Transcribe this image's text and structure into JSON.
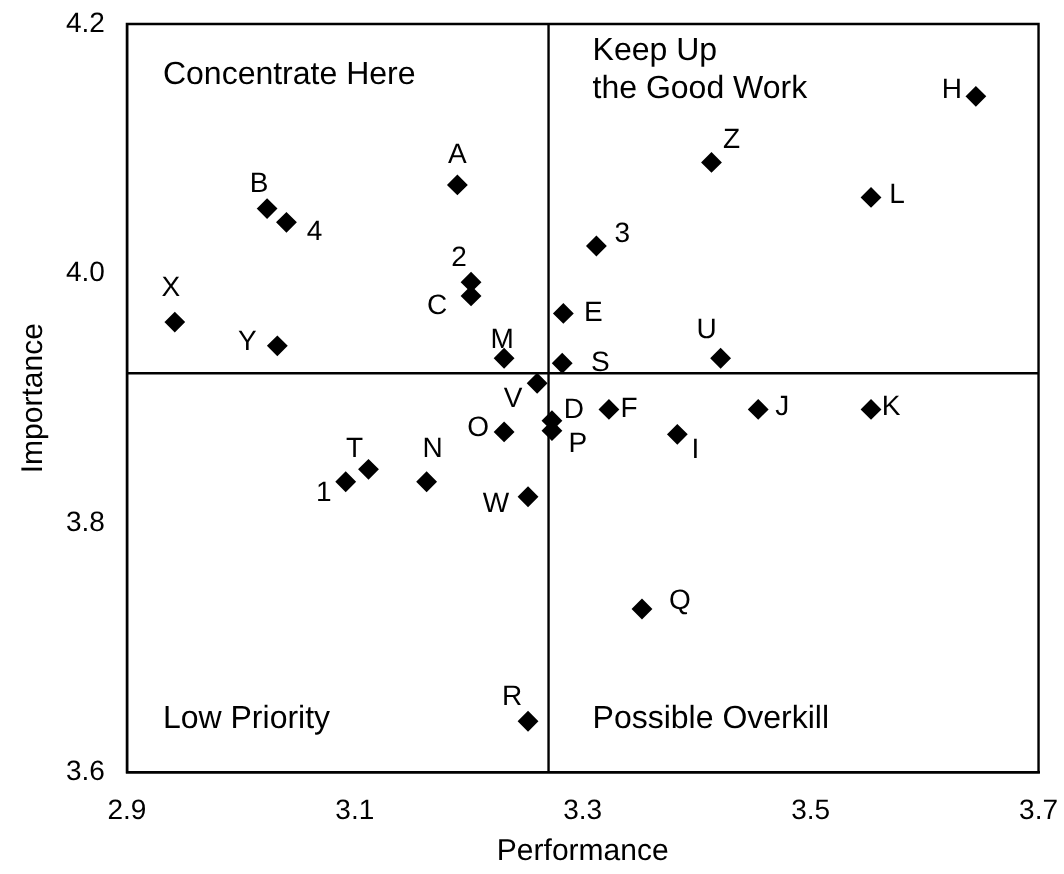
{
  "chart_data": {
    "type": "scatter",
    "xlabel": "Performance",
    "ylabel": "Importance",
    "x": [
      3.19,
      3.023,
      3.04,
      2.942,
      3.032,
      3.202,
      3.202,
      3.231,
      3.26,
      3.283,
      3.282,
      3.312,
      3.413,
      3.553,
      3.645,
      3.421,
      3.231,
      3.273,
      3.273,
      3.112,
      3.092,
      3.163,
      3.252,
      3.252,
      3.323,
      3.383,
      3.454,
      3.553,
      3.352
    ],
    "series": [
      {
        "color": "#000000",
        "values": [
          4.071,
          4.052,
          4.041,
          3.961,
          3.942,
          3.993,
          3.982,
          3.932,
          3.912,
          3.968,
          3.928,
          4.022,
          4.089,
          4.061,
          4.142,
          3.932,
          3.873,
          3.882,
          3.874,
          3.843,
          3.833,
          3.833,
          3.821,
          3.641,
          3.891,
          3.871,
          3.891,
          3.891,
          3.731
        ]
      }
    ],
    "xlim": [
      2.9,
      3.7
    ],
    "xticks": [
      2.9,
      3.1,
      3.3,
      3.5,
      3.7
    ],
    "ylim": [
      3.6,
      4.2
    ],
    "yticks": [
      3.6,
      3.8,
      {
        "value": 4,
        "label": "4.0"
      },
      4.2
    ],
    "grid": false,
    "legend": false,
    "marker": "diamond",
    "ref_lines": [
      {
        "axis": "x",
        "value": 3.27,
        "color": "#000000"
      },
      {
        "axis": "y",
        "value": 3.92,
        "color": "#000000"
      }
    ],
    "annotations": [
      {
        "text": "A",
        "x": 3.19,
        "y": 4.071
      },
      {
        "text": "B",
        "x": 3.023,
        "y": 4.052
      },
      {
        "text": "4",
        "x": 3.04,
        "y": 4.041
      },
      {
        "text": "X",
        "x": 2.942,
        "y": 3.961
      },
      {
        "text": "Y",
        "x": 3.032,
        "y": 3.942
      },
      {
        "text": "2",
        "x": 3.202,
        "y": 3.993
      },
      {
        "text": "C",
        "x": 3.202,
        "y": 3.982
      },
      {
        "text": "M",
        "x": 3.231,
        "y": 3.932
      },
      {
        "text": "V",
        "x": 3.26,
        "y": 3.912
      },
      {
        "text": "E",
        "x": 3.283,
        "y": 3.968
      },
      {
        "text": "S",
        "x": 3.282,
        "y": 3.928
      },
      {
        "text": "3",
        "x": 3.312,
        "y": 4.022
      },
      {
        "text": "Z",
        "x": 3.413,
        "y": 4.089
      },
      {
        "text": "L",
        "x": 3.553,
        "y": 4.061
      },
      {
        "text": "H",
        "x": 3.645,
        "y": 4.142
      },
      {
        "text": "U",
        "x": 3.421,
        "y": 3.932
      },
      {
        "text": "O",
        "x": 3.231,
        "y": 3.873
      },
      {
        "text": "D",
        "x": 3.273,
        "y": 3.882
      },
      {
        "text": "P",
        "x": 3.273,
        "y": 3.874
      },
      {
        "text": "T",
        "x": 3.112,
        "y": 3.843
      },
      {
        "text": "1",
        "x": 3.092,
        "y": 3.833
      },
      {
        "text": "N",
        "x": 3.163,
        "y": 3.833
      },
      {
        "text": "W",
        "x": 3.252,
        "y": 3.821
      },
      {
        "text": "R",
        "x": 3.252,
        "y": 3.641
      },
      {
        "text": "F",
        "x": 3.323,
        "y": 3.891
      },
      {
        "text": "I",
        "x": 3.383,
        "y": 3.871
      },
      {
        "text": "J",
        "x": 3.454,
        "y": 3.891
      },
      {
        "text": "K",
        "x": 3.553,
        "y": 3.891
      },
      {
        "text": "Q",
        "x": 3.352,
        "y": 3.731
      },
      "Concentrate Here",
      "Keep Up\nthe Good Work",
      "Low Priority",
      "Possible Overkill"
    ]
  }
}
